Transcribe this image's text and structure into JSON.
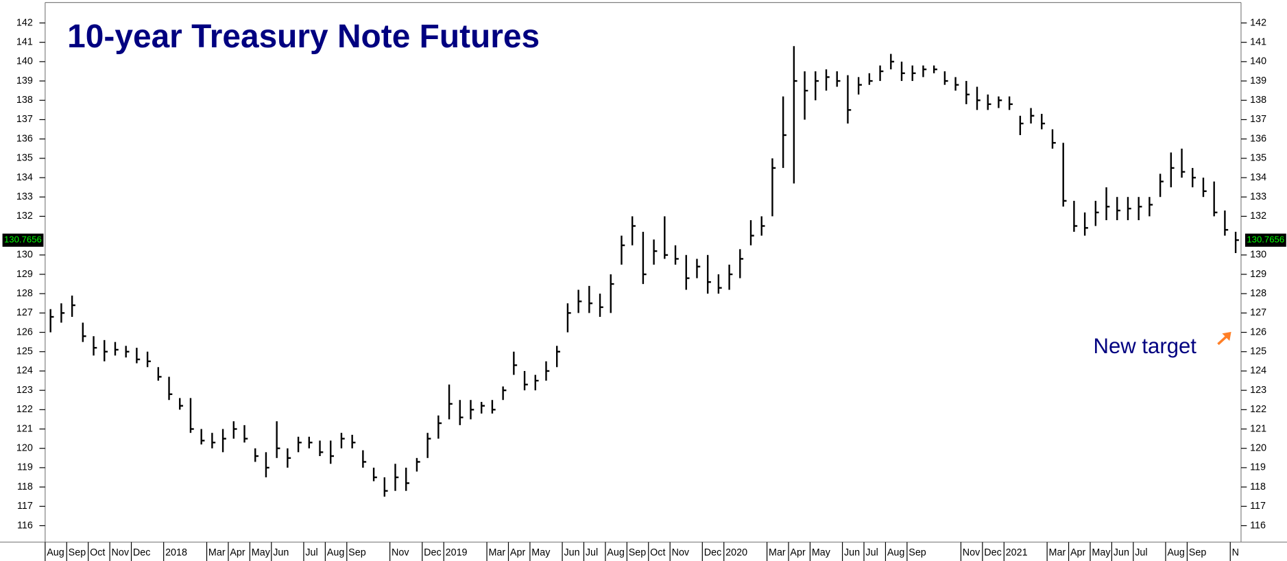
{
  "chart_data": {
    "type": "hlc",
    "title": "10-year Treasury Note Futures",
    "annotation": "New target",
    "last_price": 130.7656,
    "color": "#000000",
    "categories": [
      "Aug",
      null,
      "Sep",
      null,
      "Oct",
      null,
      "Nov",
      null,
      "Dec",
      null,
      null,
      "2018",
      null,
      null,
      null,
      "Mar",
      null,
      "Apr",
      null,
      "May",
      null,
      "Jun",
      null,
      null,
      "Jul",
      null,
      "Aug",
      null,
      "Sep",
      null,
      null,
      null,
      "Nov",
      null,
      null,
      "Dec",
      null,
      "2019",
      null,
      null,
      null,
      "Mar",
      null,
      "Apr",
      null,
      "May",
      null,
      null,
      "Jun",
      null,
      "Jul",
      null,
      "Aug",
      null,
      "Sep",
      null,
      "Oct",
      null,
      "Nov",
      null,
      null,
      "Dec",
      null,
      "2020",
      null,
      null,
      null,
      "Mar",
      null,
      "Apr",
      null,
      "May",
      null,
      null,
      "Jun",
      null,
      "Jul",
      null,
      "Aug",
      null,
      "Sep",
      null,
      null,
      null,
      null,
      "Nov",
      null,
      "Dec",
      null,
      "2021",
      null,
      null,
      null,
      "Mar",
      null,
      "Apr",
      null,
      "May",
      null,
      "Jun",
      null,
      "Jul",
      null,
      null,
      "Aug",
      null,
      "Sep",
      null,
      null,
      null,
      "N"
    ],
    "high": [
      127.2,
      127.5,
      127.9,
      126.5,
      125.8,
      125.6,
      125.5,
      125.3,
      125.2,
      125.0,
      124.2,
      123.7,
      122.6,
      122.6,
      121.0,
      120.8,
      121.0,
      121.4,
      121.2,
      120.0,
      119.8,
      121.4,
      120.0,
      120.6,
      120.6,
      120.4,
      120.4,
      120.8,
      120.7,
      119.9,
      119.0,
      118.5,
      119.2,
      119.0,
      119.5,
      120.8,
      121.7,
      123.3,
      122.5,
      122.5,
      122.4,
      122.5,
      123.2,
      125.0,
      124.0,
      123.8,
      124.5,
      125.3,
      127.5,
      128.2,
      128.4,
      128.0,
      129.0,
      131.0,
      132.0,
      131.2,
      130.8,
      132.0,
      130.5,
      130.0,
      129.8,
      130.0,
      129.0,
      129.5,
      130.3,
      131.8,
      132.0,
      135.0,
      138.2,
      140.8,
      139.5,
      139.5,
      139.6,
      139.5,
      139.3,
      139.2,
      139.4,
      139.8,
      140.4,
      140.0,
      139.8,
      139.8,
      139.8,
      139.5,
      139.2,
      139.0,
      138.7,
      138.3,
      138.2,
      138.2,
      137.2,
      137.6,
      137.3,
      136.5,
      135.8,
      132.8,
      132.2,
      132.8,
      133.5,
      133.0,
      133.0,
      133.0,
      133.0,
      134.2,
      135.3,
      135.5,
      134.5,
      134.0,
      133.8,
      132.3,
      131.2
    ],
    "low": [
      126.0,
      126.5,
      126.8,
      125.5,
      124.8,
      124.5,
      124.8,
      124.7,
      124.4,
      124.2,
      123.5,
      122.5,
      122.0,
      120.8,
      120.2,
      120.0,
      119.8,
      120.5,
      120.3,
      119.3,
      118.5,
      119.5,
      119.0,
      119.8,
      120.0,
      119.6,
      119.2,
      120.0,
      120.0,
      119.0,
      118.3,
      117.5,
      117.8,
      117.8,
      118.8,
      119.5,
      120.5,
      121.5,
      121.2,
      121.5,
      121.8,
      121.8,
      122.5,
      123.8,
      123.0,
      123.0,
      123.5,
      124.2,
      126.0,
      127.0,
      127.0,
      126.8,
      127.0,
      129.5,
      130.5,
      128.5,
      129.5,
      129.8,
      129.5,
      128.2,
      128.8,
      128.0,
      128.0,
      128.2,
      128.8,
      130.5,
      131.0,
      132.0,
      134.5,
      133.7,
      137.0,
      138.0,
      138.5,
      138.7,
      136.8,
      138.3,
      138.8,
      139.0,
      139.6,
      139.0,
      139.0,
      139.2,
      139.4,
      138.8,
      138.5,
      137.8,
      137.5,
      137.5,
      137.6,
      137.5,
      136.2,
      136.8,
      136.5,
      135.5,
      132.5,
      131.2,
      131.0,
      131.5,
      131.8,
      131.8,
      131.8,
      131.8,
      132.0,
      133.0,
      133.5,
      134.0,
      133.5,
      133.0,
      132.0,
      131.0,
      130.1
    ],
    "close": [
      126.8,
      127.0,
      127.4,
      125.8,
      125.2,
      125.0,
      125.1,
      125.0,
      124.6,
      124.5,
      123.7,
      122.8,
      122.2,
      121.0,
      120.4,
      120.3,
      120.5,
      121.0,
      120.5,
      119.6,
      119.0,
      120.0,
      119.5,
      120.3,
      120.3,
      119.8,
      119.6,
      120.5,
      120.3,
      119.3,
      118.5,
      117.8,
      118.5,
      118.2,
      119.3,
      120.5,
      121.3,
      122.3,
      121.6,
      122.0,
      122.2,
      122.0,
      123.0,
      124.3,
      123.3,
      123.5,
      124.0,
      125.0,
      127.0,
      127.6,
      127.5,
      127.3,
      128.5,
      130.5,
      131.5,
      129.0,
      130.2,
      130.0,
      129.8,
      128.8,
      129.4,
      128.6,
      128.3,
      129.0,
      129.8,
      131.0,
      131.5,
      134.5,
      136.2,
      139.0,
      138.5,
      139.0,
      139.2,
      139.0,
      137.5,
      138.8,
      139.0,
      139.5,
      140.0,
      139.4,
      139.4,
      139.6,
      139.6,
      139.0,
      138.8,
      138.3,
      138.0,
      137.8,
      138.0,
      137.8,
      136.8,
      137.2,
      136.8,
      135.8,
      132.8,
      131.5,
      131.4,
      132.2,
      132.5,
      132.3,
      132.4,
      132.5,
      132.6,
      133.8,
      134.5,
      134.3,
      134.0,
      133.3,
      132.2,
      131.3,
      130.77
    ],
    "ylim": [
      115.15,
      143.06
    ],
    "yticks": [
      116,
      117,
      118,
      119,
      120,
      121,
      122,
      123,
      124,
      125,
      126,
      127,
      128,
      129,
      130,
      132,
      133,
      134,
      135,
      136,
      137,
      138,
      139,
      140,
      141,
      142
    ]
  }
}
